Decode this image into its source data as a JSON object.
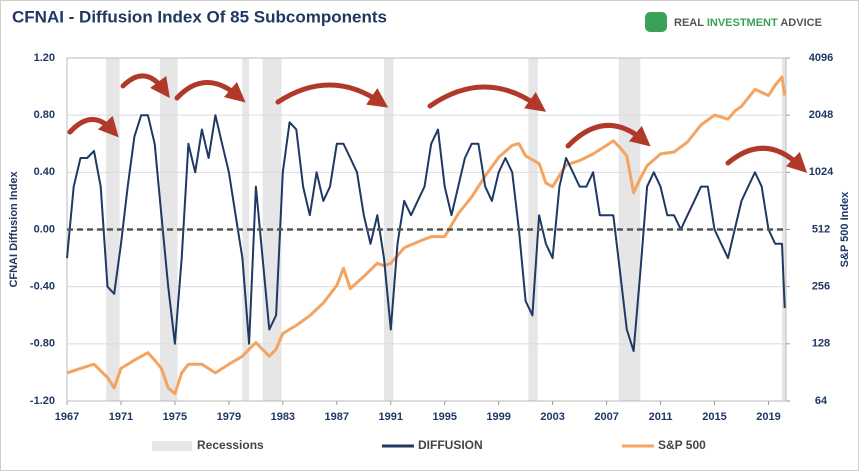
{
  "chart_data": {
    "type": "line",
    "title": "CFNAI - Diffusion Index Of 85 Subcomponents",
    "logo": [
      "REAL ",
      "INVESTMENT",
      " ADVICE"
    ],
    "y_label": "CFNAI Diffusion Index",
    "y2_label": "S&P 500 Index",
    "xlim": [
      1967,
      2020.3
    ],
    "xticks": [
      1967,
      1971,
      1975,
      1979,
      1983,
      1987,
      1991,
      1995,
      1999,
      2003,
      2007,
      2011,
      2015,
      2019
    ],
    "ylim": [
      -1.2,
      1.2
    ],
    "yticks": [
      {
        "value": -1.2,
        "label": "-1.20"
      },
      {
        "value": -0.8,
        "label": "-0.80"
      },
      {
        "value": -0.4,
        "label": "-0.40"
      },
      {
        "value": 0,
        "label": "0.00"
      },
      {
        "value": 0.4,
        "label": "0.40"
      },
      {
        "value": 0.8,
        "label": "0.80"
      },
      {
        "value": 1.2,
        "label": "1.20"
      }
    ],
    "y2lim": [
      64,
      4096
    ],
    "y2ticks": [
      64,
      128,
      256,
      512,
      1024,
      2048,
      4096
    ],
    "y2log": true,
    "grid": true,
    "reference_line": {
      "value": 0,
      "color": "#555555"
    },
    "recessions": {
      "name": "Recessions",
      "color": "#e6e6e6",
      "spans": [
        [
          1969.9,
          1970.9
        ],
        [
          1973.9,
          1975.2
        ],
        [
          1980.0,
          1980.5
        ],
        [
          1981.5,
          1982.9
        ],
        [
          1990.5,
          1991.2
        ],
        [
          2001.2,
          2001.9
        ],
        [
          2007.9,
          2009.5
        ],
        [
          2020.0,
          2020.3
        ]
      ]
    },
    "series": [
      {
        "name": "DIFFUSION",
        "color": "#1f3864",
        "axis": "y",
        "x": [
          1967,
          1967.5,
          1968,
          1968.5,
          1969,
          1969.5,
          1970,
          1970.5,
          1971,
          1971.5,
          1972,
          1972.5,
          1973,
          1973.5,
          1974,
          1974.5,
          1975,
          1975.5,
          1976,
          1976.5,
          1977,
          1977.5,
          1978,
          1978.5,
          1979,
          1979.5,
          1980,
          1980.5,
          1981,
          1981.5,
          1982,
          1982.5,
          1983,
          1983.5,
          1984,
          1984.5,
          1985,
          1985.5,
          1986,
          1986.5,
          1987,
          1987.5,
          1988,
          1988.5,
          1989,
          1989.5,
          1990,
          1990.5,
          1991,
          1991.5,
          1992,
          1992.5,
          1993,
          1993.5,
          1994,
          1994.5,
          1995,
          1995.5,
          1996,
          1996.5,
          1997,
          1997.5,
          1998,
          1998.5,
          1999,
          1999.5,
          2000,
          2000.5,
          2001,
          2001.5,
          2002,
          2002.5,
          2003,
          2003.5,
          2004,
          2004.5,
          2005,
          2005.5,
          2006,
          2006.5,
          2007,
          2007.5,
          2008,
          2008.5,
          2009,
          2009.5,
          2010,
          2010.5,
          2011,
          2011.5,
          2012,
          2012.5,
          2013,
          2013.5,
          2014,
          2014.5,
          2015,
          2015.5,
          2016,
          2016.5,
          2017,
          2017.5,
          2018,
          2018.5,
          2019,
          2019.5,
          2020,
          2020.2
        ],
        "values": [
          -0.2,
          0.3,
          0.5,
          0.5,
          0.55,
          0.3,
          -0.4,
          -0.45,
          -0.1,
          0.3,
          0.65,
          0.8,
          0.8,
          0.6,
          0.1,
          -0.4,
          -0.8,
          -0.2,
          0.6,
          0.4,
          0.7,
          0.5,
          0.8,
          0.6,
          0.4,
          0.1,
          -0.2,
          -0.8,
          0.3,
          -0.2,
          -0.7,
          -0.6,
          0.4,
          0.75,
          0.7,
          0.3,
          0.1,
          0.4,
          0.2,
          0.3,
          0.6,
          0.6,
          0.5,
          0.4,
          0.1,
          -0.1,
          0.1,
          -0.2,
          -0.7,
          -0.1,
          0.2,
          0.1,
          0.2,
          0.3,
          0.6,
          0.7,
          0.3,
          0.1,
          0.3,
          0.5,
          0.6,
          0.6,
          0.3,
          0.2,
          0.4,
          0.5,
          0.4,
          0.0,
          -0.5,
          -0.6,
          0.1,
          -0.1,
          -0.2,
          0.3,
          0.5,
          0.4,
          0.3,
          0.3,
          0.4,
          0.1,
          0.1,
          0.1,
          -0.3,
          -0.7,
          -0.85,
          -0.3,
          0.3,
          0.4,
          0.3,
          0.1,
          0.1,
          0.0,
          0.1,
          0.2,
          0.3,
          0.3,
          0.0,
          -0.1,
          -0.2,
          0.0,
          0.2,
          0.3,
          0.4,
          0.3,
          0.0,
          -0.1,
          -0.1,
          -0.55
        ]
      },
      {
        "name": "S&P 500",
        "color": "#f4a460",
        "axis": "y2",
        "x": [
          1967,
          1968,
          1969,
          1970,
          1970.5,
          1971,
          1972,
          1973,
          1973.5,
          1974,
          1974.5,
          1975,
          1975.5,
          1976,
          1977,
          1978,
          1979,
          1980,
          1980.5,
          1981,
          1982,
          1982.5,
          1983,
          1984,
          1985,
          1986,
          1987,
          1987.5,
          1988,
          1989,
          1990,
          1990.5,
          1991,
          1992,
          1993,
          1994,
          1995,
          1996,
          1997,
          1998,
          1999,
          2000,
          2000.5,
          2001,
          2002,
          2002.5,
          2003,
          2004,
          2005,
          2006,
          2007,
          2007.5,
          2008,
          2008.5,
          2009,
          2009.5,
          2010,
          2011,
          2012,
          2013,
          2014,
          2015,
          2016,
          2016.5,
          2017,
          2018,
          2019,
          2019.5,
          2020,
          2020.2
        ],
        "values": [
          90,
          95,
          100,
          85,
          75,
          95,
          105,
          115,
          105,
          95,
          75,
          70,
          90,
          100,
          100,
          90,
          100,
          110,
          120,
          130,
          110,
          120,
          145,
          160,
          180,
          210,
          260,
          320,
          250,
          290,
          340,
          330,
          340,
          410,
          440,
          470,
          470,
          620,
          760,
          980,
          1230,
          1420,
          1450,
          1250,
          1140,
          900,
          860,
          1120,
          1180,
          1280,
          1420,
          1500,
          1380,
          1250,
          800,
          950,
          1110,
          1280,
          1310,
          1480,
          1820,
          2050,
          1950,
          2150,
          2280,
          2800,
          2600,
          2950,
          3250,
          2600
        ]
      }
    ]
  }
}
